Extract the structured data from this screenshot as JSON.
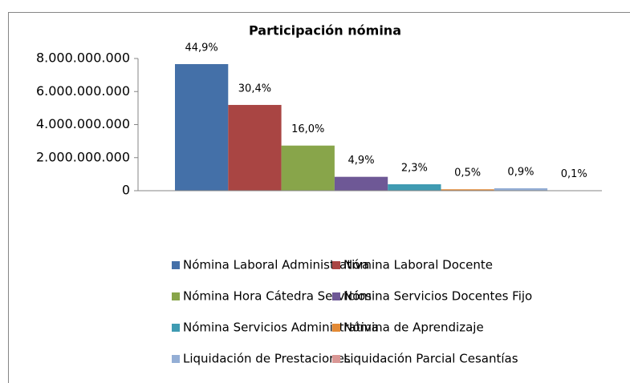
{
  "chart_data": {
    "type": "bar",
    "title": "Participación nómina",
    "ylim": [
      0,
      8000000000
    ],
    "yticks": [
      0,
      {
        "value": 2000000000,
        "label": "2.000.000.000"
      },
      {
        "value": 4000000000,
        "label": "4.000.000.000"
      },
      {
        "value": 6000000000,
        "label": "6.000.000.000"
      },
      {
        "value": 8000000000,
        "label": "8.000.000.000"
      }
    ],
    "categories": [
      null
    ],
    "series": [
      {
        "name": "Nómina Laboral Administrativa",
        "color": "#4470a8",
        "values": [
          7660000000
        ],
        "data_labels": [
          "44,9%"
        ]
      },
      {
        "name": "Nómina Laboral Docente",
        "color": "#a94543",
        "values": [
          5190000000
        ],
        "data_labels": [
          "30,4%"
        ]
      },
      {
        "name": "Nómina Hora Cátedra Servicios",
        "color": "#88a54a",
        "values": [
          2730000000
        ],
        "data_labels": [
          "16,0%"
        ]
      },
      {
        "name": "Nómina Servicios Docentes Fijo",
        "color": "#6e5896",
        "values": [
          840000000
        ],
        "data_labels": [
          "4,9%"
        ]
      },
      {
        "name": "Nómina  Servicios Administrativa",
        "color": "#3f9bb2",
        "values": [
          390000000
        ],
        "data_labels": [
          "2,3%"
        ]
      },
      {
        "name": "Nómina de Aprendizaje",
        "color": "#e38a35",
        "values": [
          85000000
        ],
        "data_labels": [
          "0,5%"
        ]
      },
      {
        "name": "Liquidación de Prestaciones",
        "color": "#94aed5",
        "values": [
          150000000
        ],
        "data_labels": [
          "0,9%"
        ]
      },
      {
        "name": "Liquidación Parcial Cesantías",
        "color": "#d99795",
        "values": [
          17000000
        ],
        "data_labels": [
          "0,1%"
        ]
      }
    ]
  }
}
